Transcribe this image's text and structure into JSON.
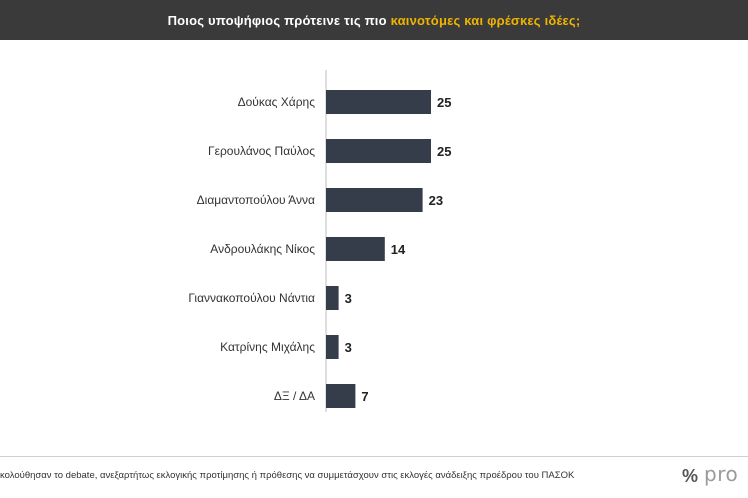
{
  "header": {
    "title_part1": "Ποιος υποψήφιος πρότεινε τις πιο ",
    "title_highlight": "καινοτόμες και φρέσκες ιδέες",
    "title_part2": ";",
    "highlight_color": "#f0b400",
    "background_color": "#3a3a3a"
  },
  "chart_data": {
    "type": "bar",
    "orientation": "horizontal",
    "categories": [
      "Δούκας Χάρης",
      "Γερουλάνος Παύλος",
      "Διαμαντοπούλου Άννα",
      "Ανδρουλάκης Νίκος",
      "Γιαννακοπούλου Νάντια",
      "Κατρίνης Μιχάλης",
      "ΔΞ / ΔΑ"
    ],
    "values": [
      25,
      25,
      23,
      14,
      3,
      3,
      7
    ],
    "value_unit": "",
    "bar_color": "#353c4a",
    "grid": false,
    "legend": "none",
    "xlim": [
      0,
      25
    ]
  },
  "footer": {
    "note": "κολούθησαν το debate, ανεξαρτήτως εκλογικής προτίμησης ή πρόθεσης να συμμετάσχουν στις εκλογές ανάδειξης προέδρου του ΠΑΣΟΚ",
    "logo_symbol": "%",
    "logo_text": "pro"
  }
}
